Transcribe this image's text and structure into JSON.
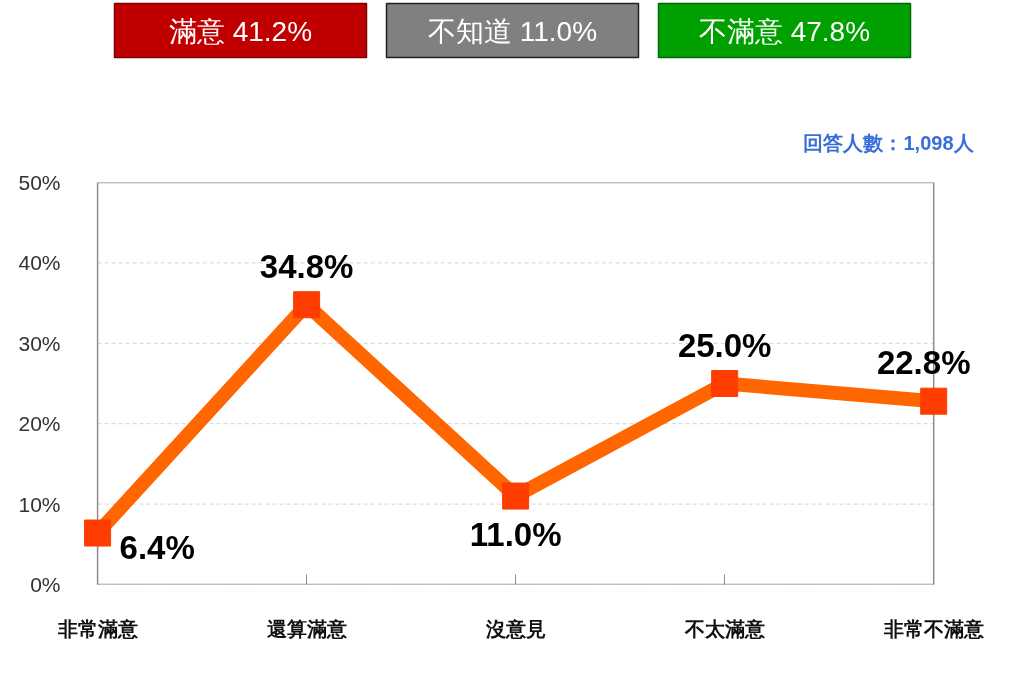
{
  "chart_data": {
    "type": "line",
    "categories": [
      "非常滿意",
      "還算滿意",
      "沒意見",
      "不太滿意",
      "非常不滿意"
    ],
    "values": [
      6.4,
      34.8,
      11.0,
      25.0,
      22.8
    ],
    "value_labels": [
      "6.4%",
      "34.8%",
      "11.0%",
      "25.0%",
      "22.8%"
    ],
    "color": "#ff6600",
    "ylim": [
      0,
      50
    ],
    "yticks": [
      {
        "value": 0,
        "label": "0%"
      },
      {
        "value": 10,
        "label": "10%"
      },
      {
        "value": 20,
        "label": "20%"
      },
      {
        "value": 30,
        "label": "30%"
      },
      {
        "value": 40,
        "label": "40%"
      },
      {
        "value": 50,
        "label": "50%"
      }
    ],
    "grid": "y",
    "marker": "square",
    "line_style": "solid",
    "annotations": [
      "滿意 41.2%",
      "不知道 11.0%",
      "不滿意 47.8%",
      "回答人數：1,098人"
    ]
  }
}
